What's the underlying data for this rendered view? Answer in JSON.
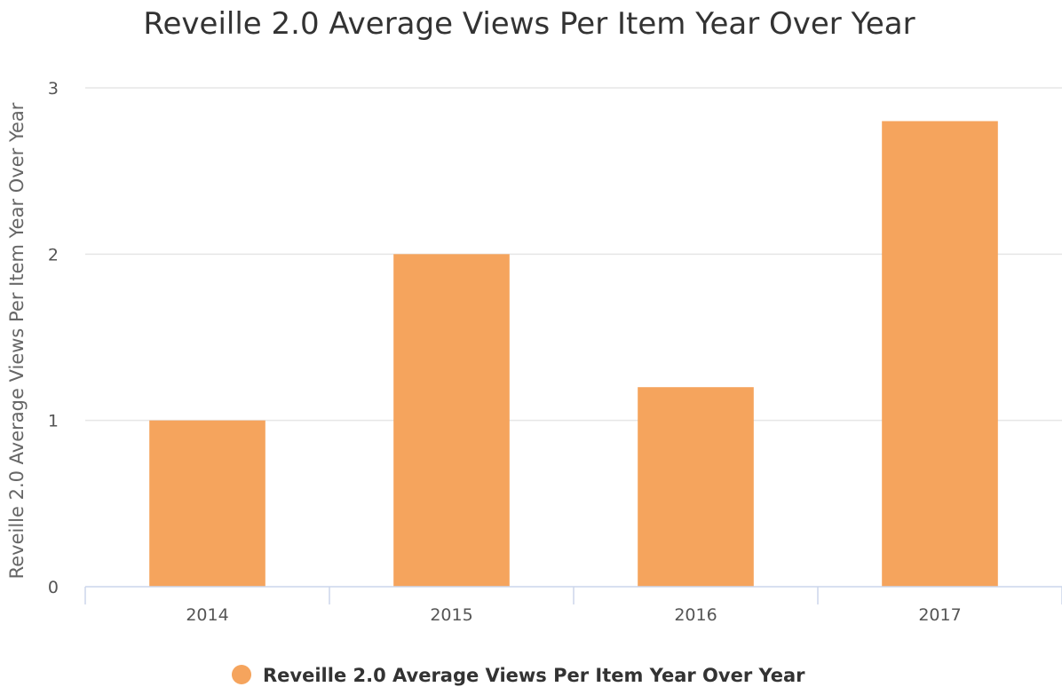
{
  "chart_data": {
    "type": "bar",
    "title": "Reveille 2.0 Average Views Per Item Year Over Year",
    "xlabel": "",
    "ylabel": "Reveille 2.0 Average Views Per Item Year Over Year",
    "categories": [
      "2014",
      "2015",
      "2016",
      "2017"
    ],
    "series": [
      {
        "name": "Reveille 2.0 Average Views Per Item Year Over Year",
        "values": [
          1.0,
          2.0,
          1.2,
          2.8
        ],
        "color": "#f5a45d"
      }
    ],
    "ylim": [
      0,
      3
    ],
    "yticks": [
      0,
      1,
      2,
      3
    ],
    "grid": true,
    "legend_position": "bottom-center"
  }
}
